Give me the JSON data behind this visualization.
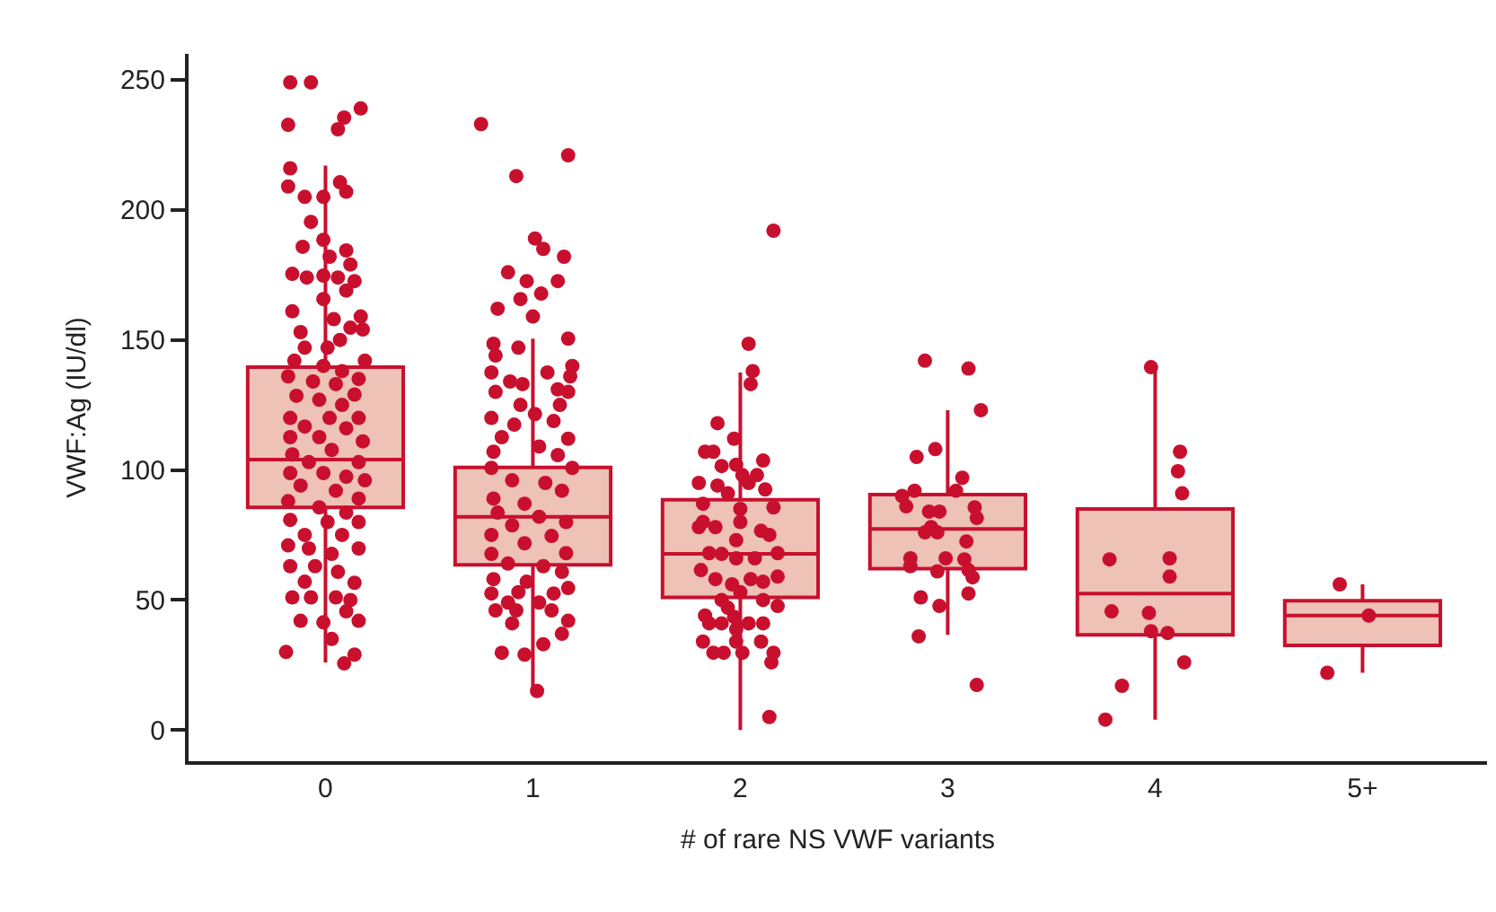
{
  "chart_data": {
    "type": "box",
    "xlabel": "# of rare NS VWF variants",
    "ylabel": "VWF:Ag (IU/dl)",
    "xlim": [
      -0.66,
      5.6
    ],
    "xticks": [
      0,
      1,
      2,
      3,
      4,
      {
        "value": 5,
        "label": "5+"
      }
    ],
    "ylim": [
      -12,
      260
    ],
    "yticks": [
      0,
      50,
      100,
      150,
      200,
      250
    ],
    "marker": "circle",
    "series": [
      {
        "color": "#c8102e",
        "colors": [
          "#eec2b6",
          "#eec2b6",
          "#eec2b6",
          "#eec2b6",
          "#eec2b6",
          "#eec2b6"
        ],
        "x": [
          0,
          1,
          2,
          3,
          4,
          5
        ],
        "boxes": [
          {
            "low": 26,
            "q1": 85.6,
            "median": 104,
            "q3": 139.5,
            "high": 217
          },
          {
            "low": 16,
            "q1": 63.5,
            "median": 82,
            "q3": 101,
            "high": 150.5
          },
          {
            "low": 0,
            "q1": 51,
            "median": 67.7,
            "q3": 88.5,
            "high": 137.5
          },
          {
            "low": 36.6,
            "q1": 62,
            "median": 77.3,
            "q3": 90.5,
            "high": 123
          },
          {
            "low": 4,
            "q1": 36.6,
            "median": 52.5,
            "q3": 85,
            "high": 139
          },
          {
            "low": 22,
            "q1": 32.5,
            "median": 44,
            "q3": 49.7,
            "high": 56
          }
        ]
      },
      {
        "type": "scatter",
        "color": "#c8102e",
        "x": [
          -0.17,
          -0.07,
          0.17,
          0.09,
          0.06,
          -0.18,
          -0.17,
          -0.18,
          0.07,
          0.1,
          -0.1,
          -0.01,
          -0.07,
          -0.01,
          -0.11,
          0.1,
          0.02,
          0.12,
          -0.16,
          -0.09,
          -0.01,
          0.06,
          0.14,
          0.1,
          -0.01,
          -0.16,
          0.17,
          0.04,
          0.12,
          -0.12,
          0.18,
          0.07,
          0.01,
          -0.1,
          -0.15,
          0.19,
          -0.01,
          0.08,
          -0.18,
          -0.06,
          0.16,
          0.05,
          -0.14,
          0.14,
          -0.03,
          0.08,
          -0.17,
          0.02,
          0.16,
          -0.1,
          0.1,
          -0.17,
          -0.03,
          0.18,
          0.03,
          -0.16,
          -0.08,
          0.16,
          -0.17,
          -0.01,
          0.1,
          0.19,
          -0.12,
          0.05,
          0.16,
          -0.18,
          -0.03,
          0.1,
          -0.17,
          0.01,
          0.16,
          0.08,
          -0.1,
          -0.18,
          0.16,
          -0.08,
          0.03,
          -0.17,
          -0.05,
          0.06,
          0.14,
          -0.1,
          -0.16,
          -0.07,
          0.05,
          0.12,
          0.1,
          -0.12,
          -0.01,
          0.16,
          0.03,
          -0.19,
          0.14,
          0.09
        ],
        "values": [
          249,
          249,
          239,
          235.5,
          231,
          232.7,
          216,
          209,
          210.6,
          207,
          205,
          205,
          195.4,
          188.5,
          185.8,
          184.4,
          182,
          179,
          175.4,
          174,
          174.7,
          174,
          172.6,
          169,
          165.7,
          161,
          159,
          158,
          154.7,
          153,
          154,
          150,
          147,
          147,
          142,
          142,
          140,
          138,
          136,
          134,
          135,
          133,
          128.5,
          129,
          127,
          125,
          120,
          120,
          120,
          116.7,
          116,
          112.6,
          112.6,
          111,
          107.7,
          106,
          103,
          103,
          98.8,
          98.8,
          97.4,
          96,
          94,
          92,
          89,
          88,
          85.6,
          83.6,
          80.8,
          80,
          80,
          75,
          75,
          71,
          69.8,
          69.8,
          67.7,
          63,
          63,
          60.8,
          56.6,
          57,
          51,
          51,
          51,
          50,
          45.6,
          42,
          41.4,
          42,
          35,
          30,
          29,
          25.6
        ]
      },
      {
        "type": "scatter",
        "color": "#c8102e",
        "x": [
          0.75,
          1.17,
          0.92,
          1.01,
          1.05,
          1.15,
          0.88,
          0.97,
          1.12,
          1.04,
          0.94,
          0.83,
          1.0,
          1.17,
          0.81,
          0.93,
          0.82,
          1.19,
          0.8,
          1.18,
          0.89,
          0.95,
          1.07,
          1.12,
          1.17,
          0.82,
          0.94,
          1.13,
          0.8,
          1.01,
          0.91,
          1.1,
          0.85,
          1.17,
          0.81,
          1.03,
          1.12,
          1.19,
          0.8,
          0.9,
          1.06,
          1.14,
          0.81,
          0.96,
          0.83,
          1.03,
          1.16,
          0.9,
          0.8,
          1.09,
          0.96,
          1.16,
          0.8,
          0.88,
          1.05,
          1.14,
          0.81,
          0.97,
          1.17,
          0.8,
          0.93,
          1.1,
          0.88,
          1.03,
          0.82,
          0.92,
          1.09,
          1.17,
          0.9,
          1.14,
          1.05,
          0.85,
          0.96,
          1.02
        ],
        "values": [
          233,
          221,
          213,
          189,
          185,
          182,
          176,
          172.6,
          172.6,
          167.8,
          165.7,
          162,
          159,
          150.5,
          148.5,
          147,
          144,
          140,
          137.5,
          136,
          134,
          133,
          137.5,
          131,
          130,
          130,
          125,
          125,
          120,
          121.5,
          117.4,
          118.8,
          112.6,
          112,
          107,
          109,
          105.7,
          100.8,
          100.8,
          96,
          95,
          92,
          89,
          87,
          83.6,
          82,
          80,
          78.7,
          75,
          74.6,
          71.8,
          68,
          67.7,
          64,
          63,
          60.8,
          58,
          57,
          54.6,
          52.5,
          53,
          52.5,
          49,
          49,
          46,
          46,
          46,
          42,
          41,
          37,
          33,
          29.7,
          29,
          15
        ]
      },
      {
        "type": "scatter",
        "color": "#c8102e",
        "x": [
          2.16,
          2.04,
          2.06,
          2.05,
          1.89,
          1.97,
          1.83,
          1.87,
          2.11,
          1.91,
          1.98,
          2.01,
          2.08,
          1.8,
          1.89,
          2.04,
          2.12,
          1.94,
          1.82,
          2.16,
          2.0,
          1.82,
          1.8,
          1.88,
          2.0,
          2.1,
          2.14,
          1.98,
          1.85,
          1.91,
          1.98,
          2.07,
          2.18,
          1.81,
          1.88,
          1.96,
          2.05,
          2.11,
          2.18,
          1.91,
          2.0,
          2.11,
          2.18,
          1.94,
          1.83,
          1.97,
          1.85,
          1.91,
          2.04,
          2.11,
          1.98,
          1.82,
          1.98,
          2.1,
          1.87,
          1.92,
          2.01,
          2.16,
          2.15,
          2.14
        ],
        "values": [
          192,
          148.5,
          138,
          133,
          118,
          112,
          107,
          107,
          103.6,
          101.5,
          102,
          98,
          98,
          95,
          94,
          95,
          92.5,
          91,
          87,
          85.6,
          85,
          80,
          78,
          78,
          80,
          76.6,
          75,
          73,
          68,
          67.7,
          66,
          66,
          68,
          61.5,
          58,
          56,
          58,
          57,
          59,
          50,
          53,
          50,
          47.7,
          47,
          44,
          43.5,
          41,
          41,
          41,
          41,
          38.7,
          34,
          34,
          34,
          29.7,
          29.7,
          29.7,
          29.7,
          26,
          5
        ]
      },
      {
        "type": "scatter",
        "color": "#c8102e",
        "x": [
          2.89,
          3.1,
          3.16,
          2.94,
          2.85,
          3.07,
          3.04,
          2.78,
          2.84,
          2.8,
          2.91,
          2.96,
          3.13,
          3.14,
          2.92,
          2.89,
          2.95,
          3.09,
          2.82,
          2.82,
          2.99,
          3.08,
          3.1,
          3.12,
          2.95,
          2.87,
          3.1,
          2.96,
          2.86,
          3.14
        ],
        "values": [
          142,
          139,
          123,
          108,
          105,
          97,
          92,
          90,
          92,
          86,
          84,
          84,
          85.6,
          81.5,
          78,
          76,
          76,
          72.5,
          66,
          63,
          66,
          65.6,
          61.5,
          58.7,
          61,
          51,
          52.5,
          47.7,
          36,
          17.3
        ]
      },
      {
        "type": "scatter",
        "color": "#c8102e",
        "x": [
          3.98,
          4.12,
          4.11,
          4.13,
          3.78,
          4.07,
          4.07,
          3.79,
          3.97,
          3.98,
          4.06,
          4.14,
          3.84,
          3.76
        ],
        "values": [
          139.5,
          107,
          99.5,
          91,
          65.6,
          66,
          59,
          45.6,
          45,
          38,
          37.3,
          26,
          17,
          4
        ]
      },
      {
        "type": "scatter",
        "color": "#c8102e",
        "x": [
          4.89,
          5.03,
          4.83
        ],
        "values": [
          56,
          44,
          22
        ]
      }
    ]
  }
}
